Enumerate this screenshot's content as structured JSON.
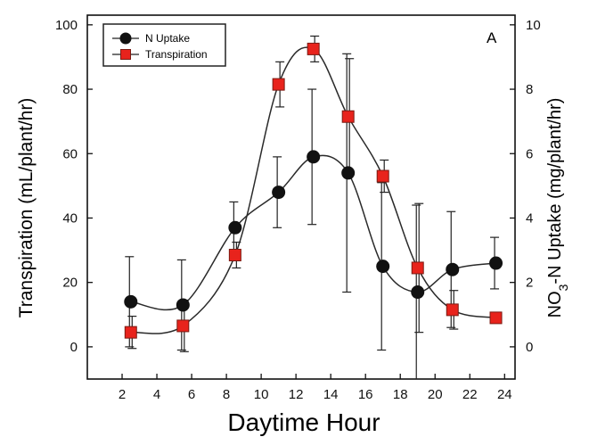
{
  "chart_data": {
    "type": "line",
    "panel_label": "A",
    "xlabel": "Daytime Hour",
    "ylabel_left": "Transpiration (mL/plant/hr)",
    "ylabel_right_parts": [
      "NO",
      "3",
      "-N Uptake  (mg/plant/hr)"
    ],
    "xlim": [
      0,
      24.6
    ],
    "ylim_left": [
      -10,
      103
    ],
    "ylim_right": [
      -1,
      10.3
    ],
    "x_ticks": [
      2,
      4,
      6,
      8,
      10,
      12,
      14,
      16,
      18,
      20,
      22,
      24
    ],
    "y_ticks_left": [
      0,
      20,
      40,
      60,
      80,
      100
    ],
    "y_ticks_right": [
      0,
      2,
      4,
      6,
      8,
      10
    ],
    "grid": false,
    "legend_position": "top-left",
    "series": [
      {
        "name": "N Uptake",
        "axis": "right",
        "marker": "circle",
        "color": "#111111",
        "x": [
          2.5,
          5.5,
          8.5,
          11,
          13,
          15,
          17,
          19,
          21,
          23.5
        ],
        "y": [
          1.4,
          1.3,
          3.7,
          4.8,
          5.9,
          5.4,
          2.5,
          1.7,
          2.4,
          2.6
        ],
        "err": [
          1.4,
          1.4,
          0.8,
          1.1,
          2.1,
          3.7,
          2.6,
          2.7,
          1.8,
          0.8
        ]
      },
      {
        "name": "Transpiration",
        "axis": "left",
        "marker": "square",
        "color": "#e8231c",
        "x": [
          2.5,
          5.5,
          8.5,
          11,
          13,
          15,
          17,
          19,
          21,
          23.5
        ],
        "y": [
          4.5,
          6.5,
          28.5,
          81.5,
          92.5,
          71.5,
          53,
          24.5,
          11.5,
          9
        ],
        "err": [
          5,
          8,
          4,
          7,
          4,
          18,
          5,
          20,
          6,
          1.5
        ]
      }
    ]
  }
}
